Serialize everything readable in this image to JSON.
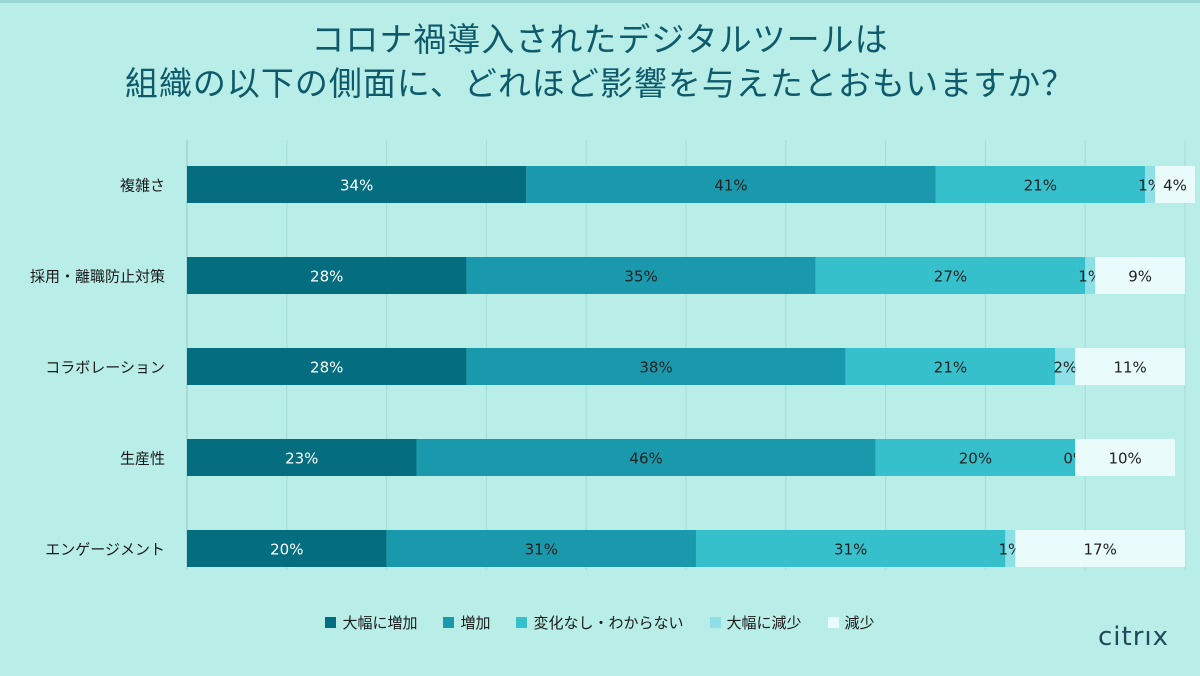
{
  "title_line1": "コロナ禍導入されたデジタルツールは",
  "title_line2": "組織の以下の側面に、どれほど影響を与えたとおもいますか？",
  "logo_text": "citrıx",
  "chart_data": {
    "type": "bar",
    "orientation": "horizontal",
    "stacked": true,
    "categories": [
      "複雑さ",
      "採用・離職防止対策",
      "コラボレーション",
      "生産性",
      "エンゲージメント"
    ],
    "series": [
      {
        "name": "大幅に増加",
        "color": "#046e80",
        "label_color": "#ffffff",
        "values": [
          34,
          28,
          28,
          23,
          20
        ]
      },
      {
        "name": "増加",
        "color": "#1999ab",
        "label_color": "#222222",
        "values": [
          41,
          35,
          38,
          46,
          31
        ]
      },
      {
        "name": "変化なし・わからない",
        "color": "#36c0cb",
        "label_color": "#222222",
        "values": [
          21,
          27,
          21,
          20,
          31
        ]
      },
      {
        "name": "大幅に減少",
        "color": "#8ee0e6",
        "label_color": "#222222",
        "values": [
          1,
          1,
          2,
          0,
          1
        ]
      },
      {
        "name": "減少",
        "color": "#e9fbfb",
        "label_color": "#222222",
        "values": [
          4,
          9,
          11,
          10,
          17
        ]
      }
    ],
    "data_labels": [
      [
        "34%",
        "41%",
        "21%",
        "1%",
        "4%"
      ],
      [
        "28%",
        "35%",
        "27%",
        "1%",
        "9%"
      ],
      [
        "28%",
        "38%",
        "21%",
        "2%",
        "11%"
      ],
      [
        "23%",
        "46%",
        "20%",
        "0%",
        "10%"
      ],
      [
        "20%",
        "31%",
        "31%",
        "1%",
        "17%"
      ]
    ],
    "xlim": [
      0,
      100
    ],
    "grid": true,
    "legend_position": "bottom"
  }
}
